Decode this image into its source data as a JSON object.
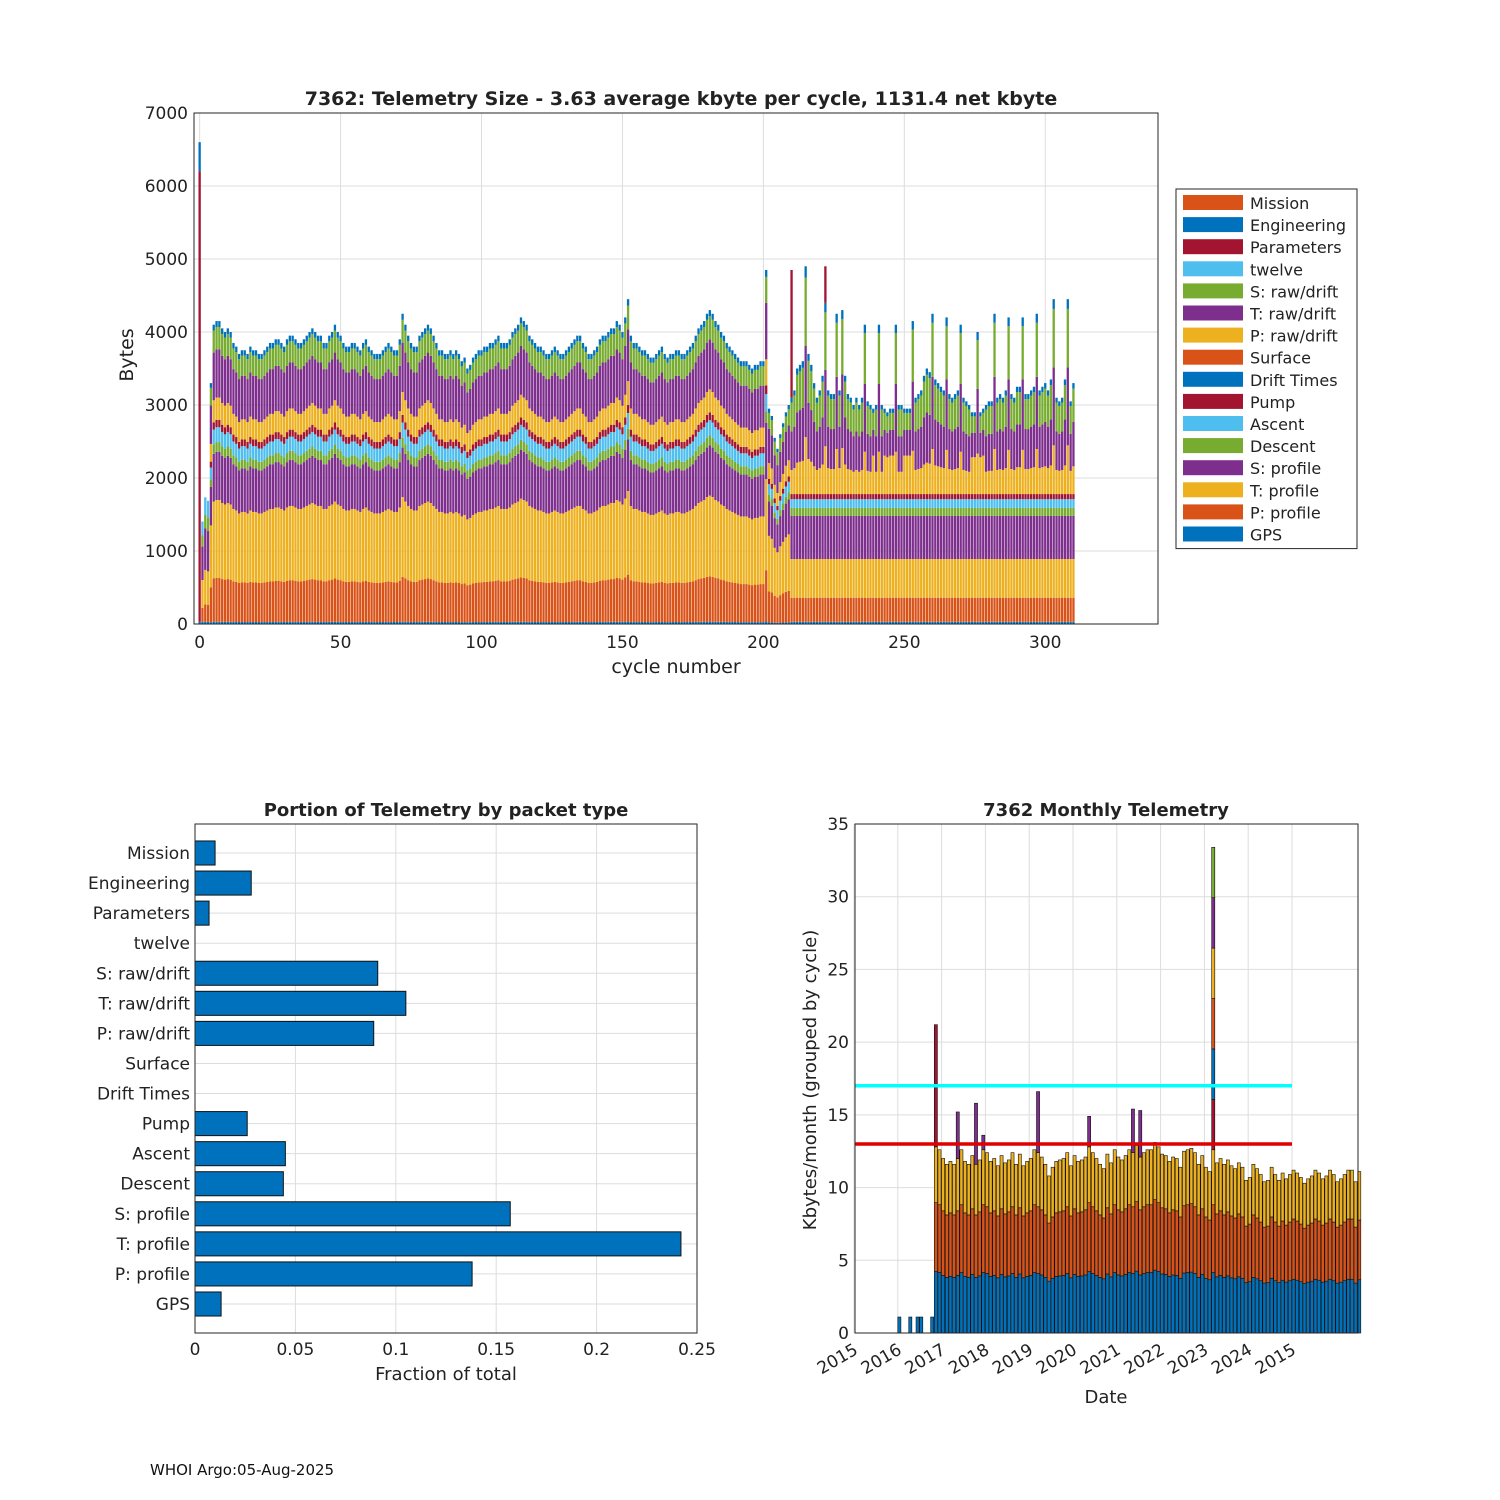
{
  "colors": {
    "blue": "#0072BD",
    "orange": "#D95319",
    "yellow": "#EDB120",
    "purple": "#7E2F8E",
    "green": "#77AC30",
    "cyan": "#4DBEEE",
    "red": "#A2142F",
    "grid": "#dddddd",
    "axis": "#262626",
    "threshold_cyan": "#00FFFF",
    "threshold_red": "#E00000"
  },
  "footer": "WHOI Argo:05-Aug-2025",
  "chart_data": [
    {
      "id": "telemetry-size",
      "type": "bar",
      "stacked": true,
      "title": "7362: Telemetry Size - 3.63 average kbyte per cycle, 1131.4 net kbyte",
      "xlabel": "cycle number",
      "ylabel": "Bytes",
      "xlim": [
        -2,
        340
      ],
      "ylim": [
        0,
        7000
      ],
      "xticks": [
        0,
        50,
        100,
        150,
        200,
        250,
        300
      ],
      "yticks": [
        0,
        1000,
        2000,
        3000,
        4000,
        5000,
        6000,
        7000
      ],
      "grid": true,
      "legend_position": "right",
      "legend": [
        "Mission",
        "Engineering",
        "Parameters",
        "twelve",
        "S: raw/drift",
        "T: raw/drift",
        "P: raw/drift",
        "Surface",
        "Drift Times",
        "Pump",
        "Ascent",
        "Descent",
        "S: profile",
        "T: profile",
        "P: profile",
        "GPS"
      ],
      "legend_colors": [
        "#D95319",
        "#0072BD",
        "#A2142F",
        "#4DBEEE",
        "#77AC30",
        "#7E2F8E",
        "#EDB120",
        "#D95319",
        "#0072BD",
        "#A2142F",
        "#4DBEEE",
        "#77AC30",
        "#7E2F8E",
        "#EDB120",
        "#D95319",
        "#0072BD"
      ],
      "stack_order": [
        "GPS",
        "P: profile",
        "T: profile",
        "S: profile",
        "Descent",
        "Ascent",
        "Pump",
        "P: raw/drift",
        "T: raw/drift",
        "S: raw/drift",
        "Mission/Engineering"
      ],
      "segments_phase1": {
        "GPS": 30,
        "P: profile": 590,
        "T: profile": 1050,
        "S: profile": 650,
        "Descent": 130,
        "Ascent": 200,
        "Pump": 100,
        "P: raw/drift": 300,
        "T: raw/drift": 650,
        "S: raw/drift": 300,
        "Mission/Engineering": 80
      },
      "segments_phase2": {
        "GPS": 30,
        "P: profile": 330,
        "T: profile": 530,
        "S: profile": 590,
        "Descent": 110,
        "Ascent": 120,
        "Pump": 70
      },
      "cycles": [
        0,
        1,
        2,
        3,
        4,
        5,
        6,
        7,
        8,
        9,
        10,
        11,
        12,
        13,
        14,
        15,
        16,
        17,
        18,
        19,
        20,
        21,
        22,
        23,
        24,
        25,
        26,
        27,
        28,
        29,
        30,
        31,
        32,
        33,
        34,
        35,
        36,
        37,
        38,
        39,
        40,
        41,
        42,
        43,
        44,
        45,
        46,
        47,
        48,
        49,
        50,
        51,
        52,
        53,
        54,
        55,
        56,
        57,
        58,
        59,
        60,
        61,
        62,
        63,
        64,
        65,
        66,
        67,
        68,
        69,
        70,
        71,
        72,
        73,
        74,
        75,
        76,
        77,
        78,
        79,
        80,
        81,
        82,
        83,
        84,
        85,
        86,
        87,
        88,
        89,
        90,
        91,
        92,
        93,
        94,
        95,
        96,
        97,
        98,
        99,
        100,
        101,
        102,
        103,
        104,
        105,
        106,
        107,
        108,
        109,
        110,
        111,
        112,
        113,
        114,
        115,
        116,
        117,
        118,
        119,
        120,
        121,
        122,
        123,
        124,
        125,
        126,
        127,
        128,
        129,
        130,
        131,
        132,
        133,
        134,
        135,
        136,
        137,
        138,
        139,
        140,
        141,
        142,
        143,
        144,
        145,
        146,
        147,
        148,
        149,
        150,
        151,
        152,
        153,
        154,
        155,
        156,
        157,
        158,
        159,
        160,
        161,
        162,
        163,
        164,
        165,
        166,
        167,
        168,
        169,
        170,
        171,
        172,
        173,
        174,
        175,
        176,
        177,
        178,
        179,
        180,
        181,
        182,
        183,
        184,
        185,
        186,
        187,
        188,
        189,
        190,
        191,
        192,
        193,
        194,
        195,
        196,
        197,
        198,
        199,
        200,
        201,
        202,
        203,
        204,
        205,
        206,
        207,
        208,
        209,
        210,
        211,
        212,
        213,
        214,
        215,
        216,
        217,
        218,
        219,
        220,
        221,
        222,
        223,
        224,
        225,
        226,
        227,
        228,
        229,
        230,
        231,
        232,
        233,
        234,
        235,
        236,
        237,
        238,
        239,
        240,
        241,
        242,
        243,
        244,
        245,
        246,
        247,
        248,
        249,
        250,
        251,
        252,
        253,
        254,
        255,
        256,
        257,
        258,
        259,
        260,
        261,
        262,
        263,
        264,
        265,
        266,
        267,
        268,
        269,
        270,
        271,
        272,
        273,
        274,
        275,
        276,
        277,
        278,
        279,
        280,
        281,
        282,
        283,
        284,
        285,
        286,
        287,
        288,
        289,
        290,
        291,
        292,
        293,
        294,
        295,
        296,
        297,
        298,
        299,
        300,
        301,
        302,
        303,
        304,
        305,
        306,
        307,
        308,
        309,
        310
      ],
      "totals": [
        6600,
        2900,
        3600,
        3500,
        3300,
        4100,
        4150,
        4150,
        4050,
        4000,
        4050,
        4000,
        3850,
        3800,
        3700,
        3750,
        3750,
        3700,
        3800,
        3750,
        3750,
        3700,
        3700,
        3750,
        3800,
        3850,
        3850,
        3900,
        3900,
        3850,
        3800,
        3900,
        3950,
        3950,
        3900,
        3850,
        3850,
        3900,
        3950,
        4000,
        4050,
        4000,
        3950,
        3950,
        3850,
        3850,
        3950,
        4000,
        4100,
        4000,
        3950,
        3850,
        3800,
        3800,
        3850,
        3850,
        3800,
        3750,
        3850,
        3900,
        3800,
        3750,
        3700,
        3700,
        3700,
        3750,
        3800,
        3850,
        3800,
        3750,
        3750,
        3900,
        4250,
        4100,
        3950,
        3850,
        3800,
        3800,
        3950,
        4000,
        4050,
        4100,
        4050,
        3950,
        3850,
        3750,
        3750,
        3700,
        3700,
        3750,
        3700,
        3750,
        3700,
        3600,
        3650,
        3500,
        3550,
        3650,
        3700,
        3750,
        3750,
        3800,
        3800,
        3850,
        3850,
        3900,
        3950,
        3850,
        3850,
        3850,
        3900,
        4000,
        4050,
        4100,
        4200,
        4150,
        4100,
        3950,
        3900,
        3850,
        3800,
        3800,
        3750,
        3700,
        3700,
        3750,
        3800,
        3750,
        3700,
        3700,
        3750,
        3800,
        3850,
        3900,
        3950,
        3950,
        3850,
        3800,
        3700,
        3700,
        3750,
        3800,
        3900,
        3950,
        3950,
        4000,
        4050,
        4050,
        4150,
        4100,
        4000,
        4200,
        4450,
        3950,
        3850,
        3850,
        3800,
        3750,
        3750,
        3700,
        3650,
        3650,
        3700,
        3750,
        3800,
        3700,
        3650,
        3700,
        3700,
        3750,
        3750,
        3700,
        3700,
        3750,
        3800,
        3850,
        3950,
        4050,
        4100,
        4150,
        4250,
        4300,
        4250,
        4150,
        4100,
        4000,
        3950,
        3850,
        3800,
        3750,
        3700,
        3650,
        3600,
        3600,
        3600,
        3550,
        3500,
        3550,
        3550,
        3600,
        3600,
        4850,
        2950,
        2850,
        2550,
        2400,
        2600,
        2750,
        2900,
        3000,
        3100,
        3200,
        3500,
        3550,
        3600,
        4900,
        3700,
        3550,
        3300,
        3100,
        3200,
        3400,
        4400,
        3200,
        3150,
        3150,
        4250,
        3200,
        4300,
        3400,
        3150,
        3100,
        3000,
        3100,
        3000,
        3100,
        4100,
        3050,
        3000,
        2950,
        3000,
        4100,
        3000,
        2950,
        2900,
        2950,
        2950,
        4100,
        3000,
        3000,
        2950,
        2950,
        2950,
        4150,
        3100,
        3150,
        3200,
        3400,
        3500,
        3450,
        4250,
        3350,
        3300,
        3250,
        3200,
        4200,
        3150,
        3100,
        3150,
        3200,
        4100,
        3100,
        3050,
        3000,
        2900,
        2900,
        4000,
        2900,
        2950,
        3000,
        3050,
        3050,
        4250,
        3100,
        3150,
        3100,
        3200,
        4200,
        3150,
        3100,
        3250,
        3250,
        4200,
        3150,
        3150,
        3200,
        3250,
        4250,
        3200,
        3250,
        3300,
        3200,
        3350,
        4450,
        3100,
        3050,
        3100,
        3350,
        4450,
        3050,
        3300
      ]
    },
    {
      "id": "portion-by-packet",
      "type": "bar",
      "orientation": "horizontal",
      "title": "Portion of Telemetry by packet type",
      "xlabel": "Fraction of total",
      "ylabel": "",
      "xlim": [
        0,
        0.25
      ],
      "xticks": [
        0,
        0.05,
        0.1,
        0.15,
        0.2,
        0.25
      ],
      "xticklabels": [
        "0",
        "0.05",
        "0.1",
        "0.15",
        "0.2",
        "0.25"
      ],
      "grid": true,
      "categories": [
        "Mission",
        "Engineering",
        "Parameters",
        "twelve",
        "S: raw/drift",
        "T: raw/drift",
        "P: raw/drift",
        "Surface",
        "Drift Times",
        "Pump",
        "Ascent",
        "Descent",
        "S: profile",
        "T: profile",
        "P: profile",
        "GPS"
      ],
      "values": [
        0.01,
        0.028,
        0.007,
        0.0,
        0.091,
        0.105,
        0.089,
        0.0,
        0.0,
        0.026,
        0.045,
        0.044,
        0.157,
        0.242,
        0.138,
        0.013
      ]
    },
    {
      "id": "monthly-telemetry",
      "type": "bar",
      "stacked": true,
      "title": "7362 Monthly Telemetry",
      "xlabel": "Date",
      "ylabel": "Kbytes/month (grouped by cycle)",
      "ylim": [
        0,
        35
      ],
      "yticks": [
        0,
        5,
        10,
        15,
        20,
        25,
        30,
        35
      ],
      "xticklabels": [
        "2015",
        "2016",
        "2017",
        "2018",
        "2019",
        "2020",
        "2021",
        "2022",
        "2023",
        "2024",
        "2015"
      ],
      "grid": true,
      "reference_lines": [
        {
          "value": 17,
          "color": "#00FFFF"
        },
        {
          "value": 13,
          "color": "#E00000"
        }
      ],
      "segment_order": [
        "GPS/P-profile base",
        "T: profile",
        "S: profile/raw"
      ],
      "early_bars": [
        {
          "month": 12,
          "value": 1.1
        },
        {
          "month": 15,
          "value": 1.1
        },
        {
          "month": 17,
          "value": 1.1
        },
        {
          "month": 18,
          "value": 1.1
        },
        {
          "month": 21,
          "value": 1.1
        }
      ],
      "spikes": [
        {
          "month": 22,
          "value": 21.2
        },
        {
          "month": 28,
          "value": 15.2
        },
        {
          "month": 33,
          "value": 15.8
        },
        {
          "month": 35,
          "value": 13.6
        },
        {
          "month": 50,
          "value": 16.6
        },
        {
          "month": 64,
          "value": 14.9
        },
        {
          "month": 76,
          "value": 15.4
        },
        {
          "month": 78,
          "value": 15.3
        },
        {
          "month": 98,
          "value": 33.4
        }
      ],
      "months": [
        22,
        23,
        24,
        25,
        26,
        27,
        28,
        29,
        30,
        31,
        32,
        33,
        34,
        35,
        36,
        37,
        38,
        39,
        40,
        41,
        42,
        43,
        44,
        45,
        46,
        47,
        48,
        49,
        50,
        51,
        52,
        53,
        54,
        55,
        56,
        57,
        58,
        59,
        60,
        61,
        62,
        63,
        64,
        65,
        66,
        67,
        68,
        69,
        70,
        71,
        72,
        73,
        74,
        75,
        76,
        77,
        78,
        79,
        80,
        81,
        82,
        83,
        84,
        85,
        86,
        87,
        88,
        89,
        90,
        91,
        92,
        93,
        94,
        95,
        96,
        97,
        98,
        99,
        100,
        101,
        102,
        103,
        104,
        105,
        106,
        107,
        108,
        109,
        110,
        111,
        112,
        113,
        114,
        115,
        116,
        117,
        118,
        119,
        120,
        121,
        122,
        123,
        124,
        125,
        126,
        127,
        128,
        129,
        130,
        131,
        132,
        133,
        134,
        135,
        136,
        137,
        138
      ],
      "totals": [
        12.8,
        12.6,
        12.0,
        11.6,
        11.8,
        11.6,
        12.0,
        12.6,
        11.8,
        11.6,
        12.2,
        11.6,
        11.9,
        12.6,
        12.4,
        11.8,
        12.0,
        11.5,
        12.2,
        11.7,
        11.9,
        12.4,
        11.6,
        12.3,
        11.5,
        11.8,
        12.0,
        12.6,
        12.4,
        12.1,
        11.6,
        10.8,
        11.4,
        11.8,
        11.9,
        12.0,
        12.4,
        11.5,
        12.2,
        11.8,
        11.9,
        12.1,
        12.8,
        12.4,
        12.0,
        11.6,
        11.3,
        12.3,
        11.7,
        12.6,
        12.1,
        11.9,
        12.2,
        12.6,
        12.4,
        12.9,
        12.1,
        12.4,
        12.6,
        12.6,
        13.1,
        12.8,
        12.3,
        12.2,
        11.8,
        12.1,
        12.0,
        11.4,
        12.5,
        12.6,
        12.7,
        12.4,
        11.6,
        12.2,
        11.4,
        11.1,
        12.6,
        11.7,
        12.0,
        11.6,
        11.9,
        11.5,
        11.3,
        11.7,
        11.4,
        10.5,
        10.7,
        11.6,
        11.3,
        10.9,
        10.4,
        10.5,
        11.4,
        10.9,
        10.5,
        11.0,
        10.6,
        10.9,
        11.2,
        11.0,
        10.7,
        10.3,
        10.6,
        10.8,
        11.2,
        11.0,
        10.6,
        10.8,
        11.2,
        10.9,
        10.4,
        10.6,
        10.9,
        11.2,
        11.2,
        10.4,
        11.1
      ]
    }
  ]
}
